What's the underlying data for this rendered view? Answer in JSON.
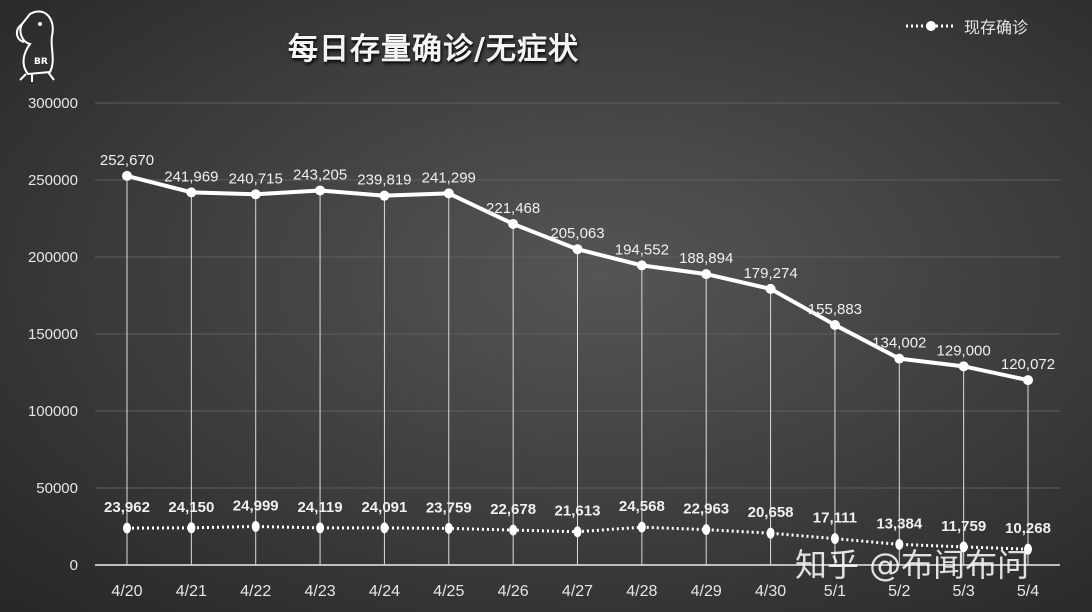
{
  "chart_data": {
    "type": "line",
    "title": "每日存量确诊/无症状",
    "categories": [
      "4/20",
      "4/21",
      "4/22",
      "4/23",
      "4/24",
      "4/25",
      "4/26",
      "4/27",
      "4/28",
      "4/29",
      "4/30",
      "5/1",
      "5/2",
      "5/3",
      "5/4"
    ],
    "series": [
      {
        "name": "现存确诊",
        "style": "solid",
        "values": [
          252670,
          241969,
          240715,
          243205,
          239819,
          241299,
          221468,
          205063,
          194552,
          188894,
          179274,
          155883,
          134002,
          129000,
          120072
        ],
        "labels": [
          "252,670",
          "241,969",
          "240,715",
          "243,205",
          "239,819",
          "241,299",
          "221,468",
          "205,063",
          "194,552",
          "188,894",
          "179,274",
          "155,883",
          "134,002",
          "129,000",
          "120,072"
        ]
      },
      {
        "name": "无症状",
        "style": "dotted",
        "values": [
          23962,
          24150,
          24999,
          24119,
          24091,
          23759,
          22678,
          21613,
          24568,
          22963,
          20658,
          17111,
          13384,
          11759,
          10268
        ],
        "labels": [
          "23,962",
          "24,150",
          "24,999",
          "24,119",
          "24,091",
          "23,759",
          "22,678",
          "21,613",
          "24,568",
          "22,963",
          "20,658",
          "17,111",
          "13,384",
          "11,759",
          "10,268"
        ]
      }
    ],
    "yticks": [
      "0",
      "50000",
      "100000",
      "150000",
      "200000",
      "250000",
      "300000"
    ],
    "ylim": [
      0,
      300000
    ],
    "grid": true,
    "legend": {
      "label": "现存确诊",
      "position": "top-right"
    },
    "xlabel": "",
    "ylabel": ""
  },
  "watermark": "知乎 @布闻布问",
  "logo_text": "BR",
  "colors": {
    "line": "#ffffff",
    "grid": "#6a6a6a",
    "text": "#e6e6e6"
  }
}
